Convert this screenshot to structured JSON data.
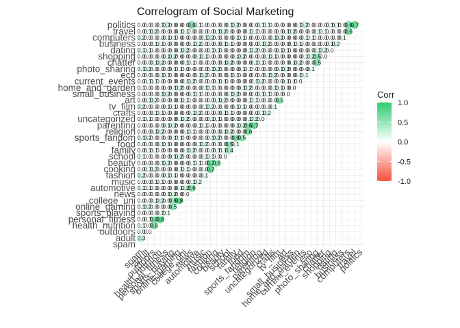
{
  "chart_data": {
    "type": "heatmap",
    "title": "Correlogram of Social Marketing",
    "variables": [
      "spam",
      "adult",
      "outdoors",
      "health_nutrition",
      "personal_fitness",
      "sports_playing",
      "online_gaming",
      "college_uni",
      "news",
      "automotive",
      "music",
      "fashion",
      "cooking",
      "beauty",
      "school",
      "family",
      "food",
      "sports_fandom",
      "religion",
      "parenting",
      "uncategorized",
      "crafts",
      "tv_film",
      "art",
      "small_business",
      "home_and_garden",
      "current_events",
      "eco",
      "photo_sharing",
      "chatter",
      "shopping",
      "dating",
      "business",
      "computers",
      "travel",
      "politics"
    ],
    "shape": "lower-triangle",
    "value_range": [
      -1,
      1
    ],
    "strong_pairs": [
      {
        "a": "adult",
        "b": "spam",
        "value": 0.3
      },
      {
        "a": "health_nutrition",
        "b": "outdoors",
        "value": 0.6
      },
      {
        "a": "personal_fitness",
        "b": "health_nutrition",
        "value": 0.8
      },
      {
        "a": "personal_fitness",
        "b": "outdoors",
        "value": 0.6
      },
      {
        "a": "online_gaming",
        "b": "sports_playing",
        "value": 0.5
      },
      {
        "a": "college_uni",
        "b": "online_gaming",
        "value": 0.8
      },
      {
        "a": "college_uni",
        "b": "sports_playing",
        "value": 0.5
      },
      {
        "a": "automotive",
        "b": "news",
        "value": 0.6
      },
      {
        "a": "fashion",
        "b": "cooking",
        "value": 0.7
      },
      {
        "a": "beauty",
        "b": "cooking",
        "value": 0.6
      },
      {
        "a": "beauty",
        "b": "fashion",
        "value": 0.7
      },
      {
        "a": "family",
        "b": "school",
        "value": 0.4
      },
      {
        "a": "food",
        "b": "school",
        "value": 0.5
      },
      {
        "a": "sports_fandom",
        "b": "family",
        "value": 0.6
      },
      {
        "a": "sports_fandom",
        "b": "food",
        "value": 0.5
      },
      {
        "a": "religion",
        "b": "sports_fandom",
        "value": 0.6
      },
      {
        "a": "parenting",
        "b": "religion",
        "value": 0.7
      },
      {
        "a": "parenting",
        "b": "sports_fandom",
        "value": 0.6
      },
      {
        "a": "art",
        "b": "tv_film",
        "value": 0.5
      },
      {
        "a": "chatter",
        "b": "photo_sharing",
        "value": 0.5
      },
      {
        "a": "shopping",
        "b": "photo_sharing",
        "value": 0.5
      },
      {
        "a": "computers",
        "b": "travel",
        "value": 0.6
      },
      {
        "a": "politics",
        "b": "computers",
        "value": 0.6
      },
      {
        "a": "politics",
        "b": "travel",
        "value": 0.7
      },
      {
        "a": "politics",
        "b": "news",
        "value": 0.6
      }
    ],
    "default_value": 0.0,
    "legend": {
      "title": "Corr",
      "ticks": [
        "1.0",
        "0.5",
        "0.0",
        "-0.5",
        "-1.0"
      ],
      "tick_values": [
        1.0,
        0.5,
        0.0,
        -0.5,
        -1.0
      ],
      "position": "right"
    },
    "colors": {
      "high": "#2ecc71",
      "mid": "#ffffff",
      "low": "#f4513b",
      "grid": "#ebebeb",
      "axis_text": "#4d4d4d"
    },
    "cell_labels": true,
    "grid": true
  }
}
